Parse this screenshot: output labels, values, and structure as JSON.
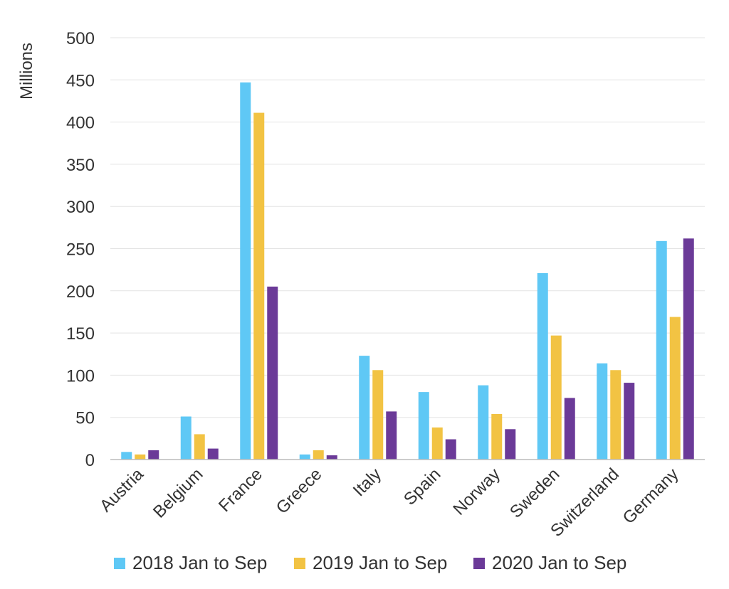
{
  "chart_data": {
    "type": "bar",
    "title": "",
    "xlabel": "",
    "ylabel": "Millions",
    "ylim": [
      0,
      500
    ],
    "yticks": [
      0,
      50,
      100,
      150,
      200,
      250,
      300,
      350,
      400,
      450,
      500
    ],
    "grid": true,
    "legend_position": "bottom",
    "categories": [
      "Austria",
      "Belgium",
      "France",
      "Greece",
      "Italy",
      "Spain",
      "Norway",
      "Sweden",
      "Switzerland",
      "Germany"
    ],
    "series": [
      {
        "name": "2018 Jan to Sep",
        "color": "#5fc8f5",
        "values": [
          9,
          51,
          447,
          6,
          123,
          80,
          88,
          221,
          114,
          259
        ]
      },
      {
        "name": "2019 Jan to Sep",
        "color": "#f2c343",
        "values": [
          6,
          30,
          411,
          11,
          106,
          38,
          54,
          147,
          106,
          169
        ]
      },
      {
        "name": "2020 Jan to Sep",
        "color": "#6b3a98",
        "values": [
          11,
          13,
          205,
          5,
          57,
          24,
          36,
          73,
          91,
          262
        ]
      }
    ]
  }
}
